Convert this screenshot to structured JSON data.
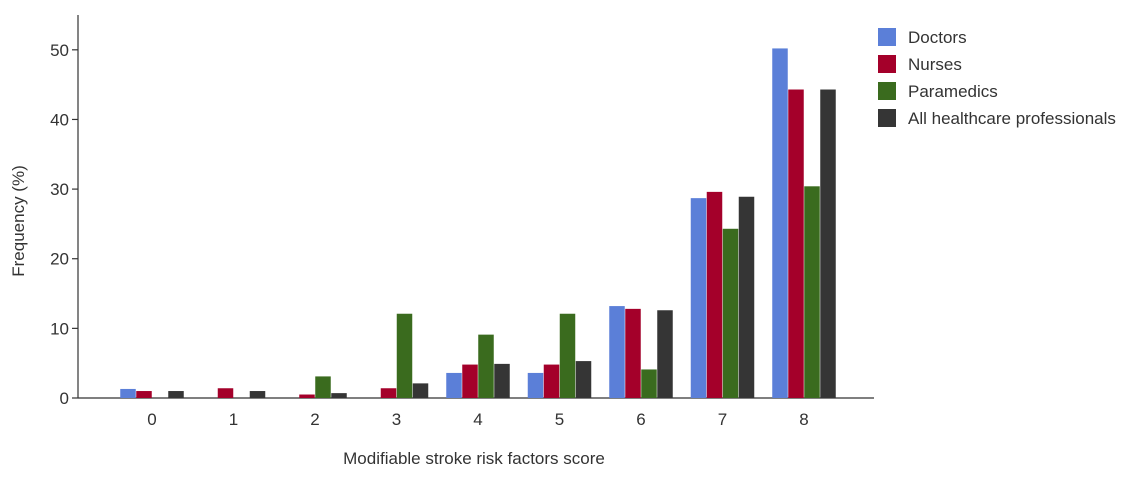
{
  "chart_data": {
    "type": "bar",
    "title": "",
    "xlabel": "Modifiable stroke risk factors score",
    "ylabel": "Frequency (%)",
    "categories": [
      "0",
      "1",
      "2",
      "3",
      "4",
      "5",
      "6",
      "7",
      "8"
    ],
    "ylim": [
      0,
      55
    ],
    "yticks": [
      0,
      10,
      20,
      30,
      40,
      50
    ],
    "grid": false,
    "legend_position": "top-right",
    "series": [
      {
        "name": "Doctors",
        "color": "#5B7FD8",
        "values": [
          1.3,
          0,
          0,
          0,
          3.6,
          3.6,
          13.2,
          28.7,
          50.2
        ]
      },
      {
        "name": "Nurses",
        "color": "#A4002A",
        "values": [
          1.0,
          1.4,
          0.5,
          1.4,
          4.8,
          4.8,
          12.8,
          29.6,
          44.3
        ]
      },
      {
        "name": "Paramedics",
        "color": "#3A6B1E",
        "values": [
          0,
          0,
          3.1,
          12.1,
          9.1,
          12.1,
          4.1,
          24.3,
          30.4
        ]
      },
      {
        "name": "All healthcare professionals",
        "color": "#353535",
        "values": [
          1.0,
          1.0,
          0.7,
          2.1,
          4.9,
          5.3,
          12.6,
          28.9,
          44.3
        ]
      }
    ]
  }
}
